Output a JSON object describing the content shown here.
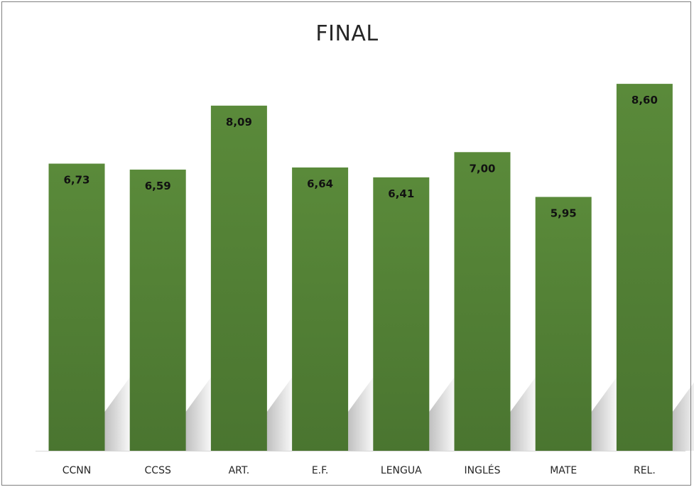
{
  "chart_data": {
    "type": "bar",
    "title": "FINAL",
    "categories": [
      "CCNN",
      "CCSS",
      "ART.",
      "E.F.",
      "LENGUA",
      "INGLÉS",
      "MATE",
      "REL."
    ],
    "values": [
      6.73,
      6.59,
      8.09,
      6.64,
      6.41,
      7.0,
      5.95,
      8.6
    ],
    "data_labels": [
      "6,73",
      "6,59",
      "8,09",
      "6,64",
      "6,41",
      "7,00",
      "5,95",
      "8,60"
    ],
    "xlabel": "",
    "ylabel": "",
    "ylim": [
      0,
      10
    ],
    "grid": false,
    "legend": "none",
    "bar_color": "#548235"
  }
}
